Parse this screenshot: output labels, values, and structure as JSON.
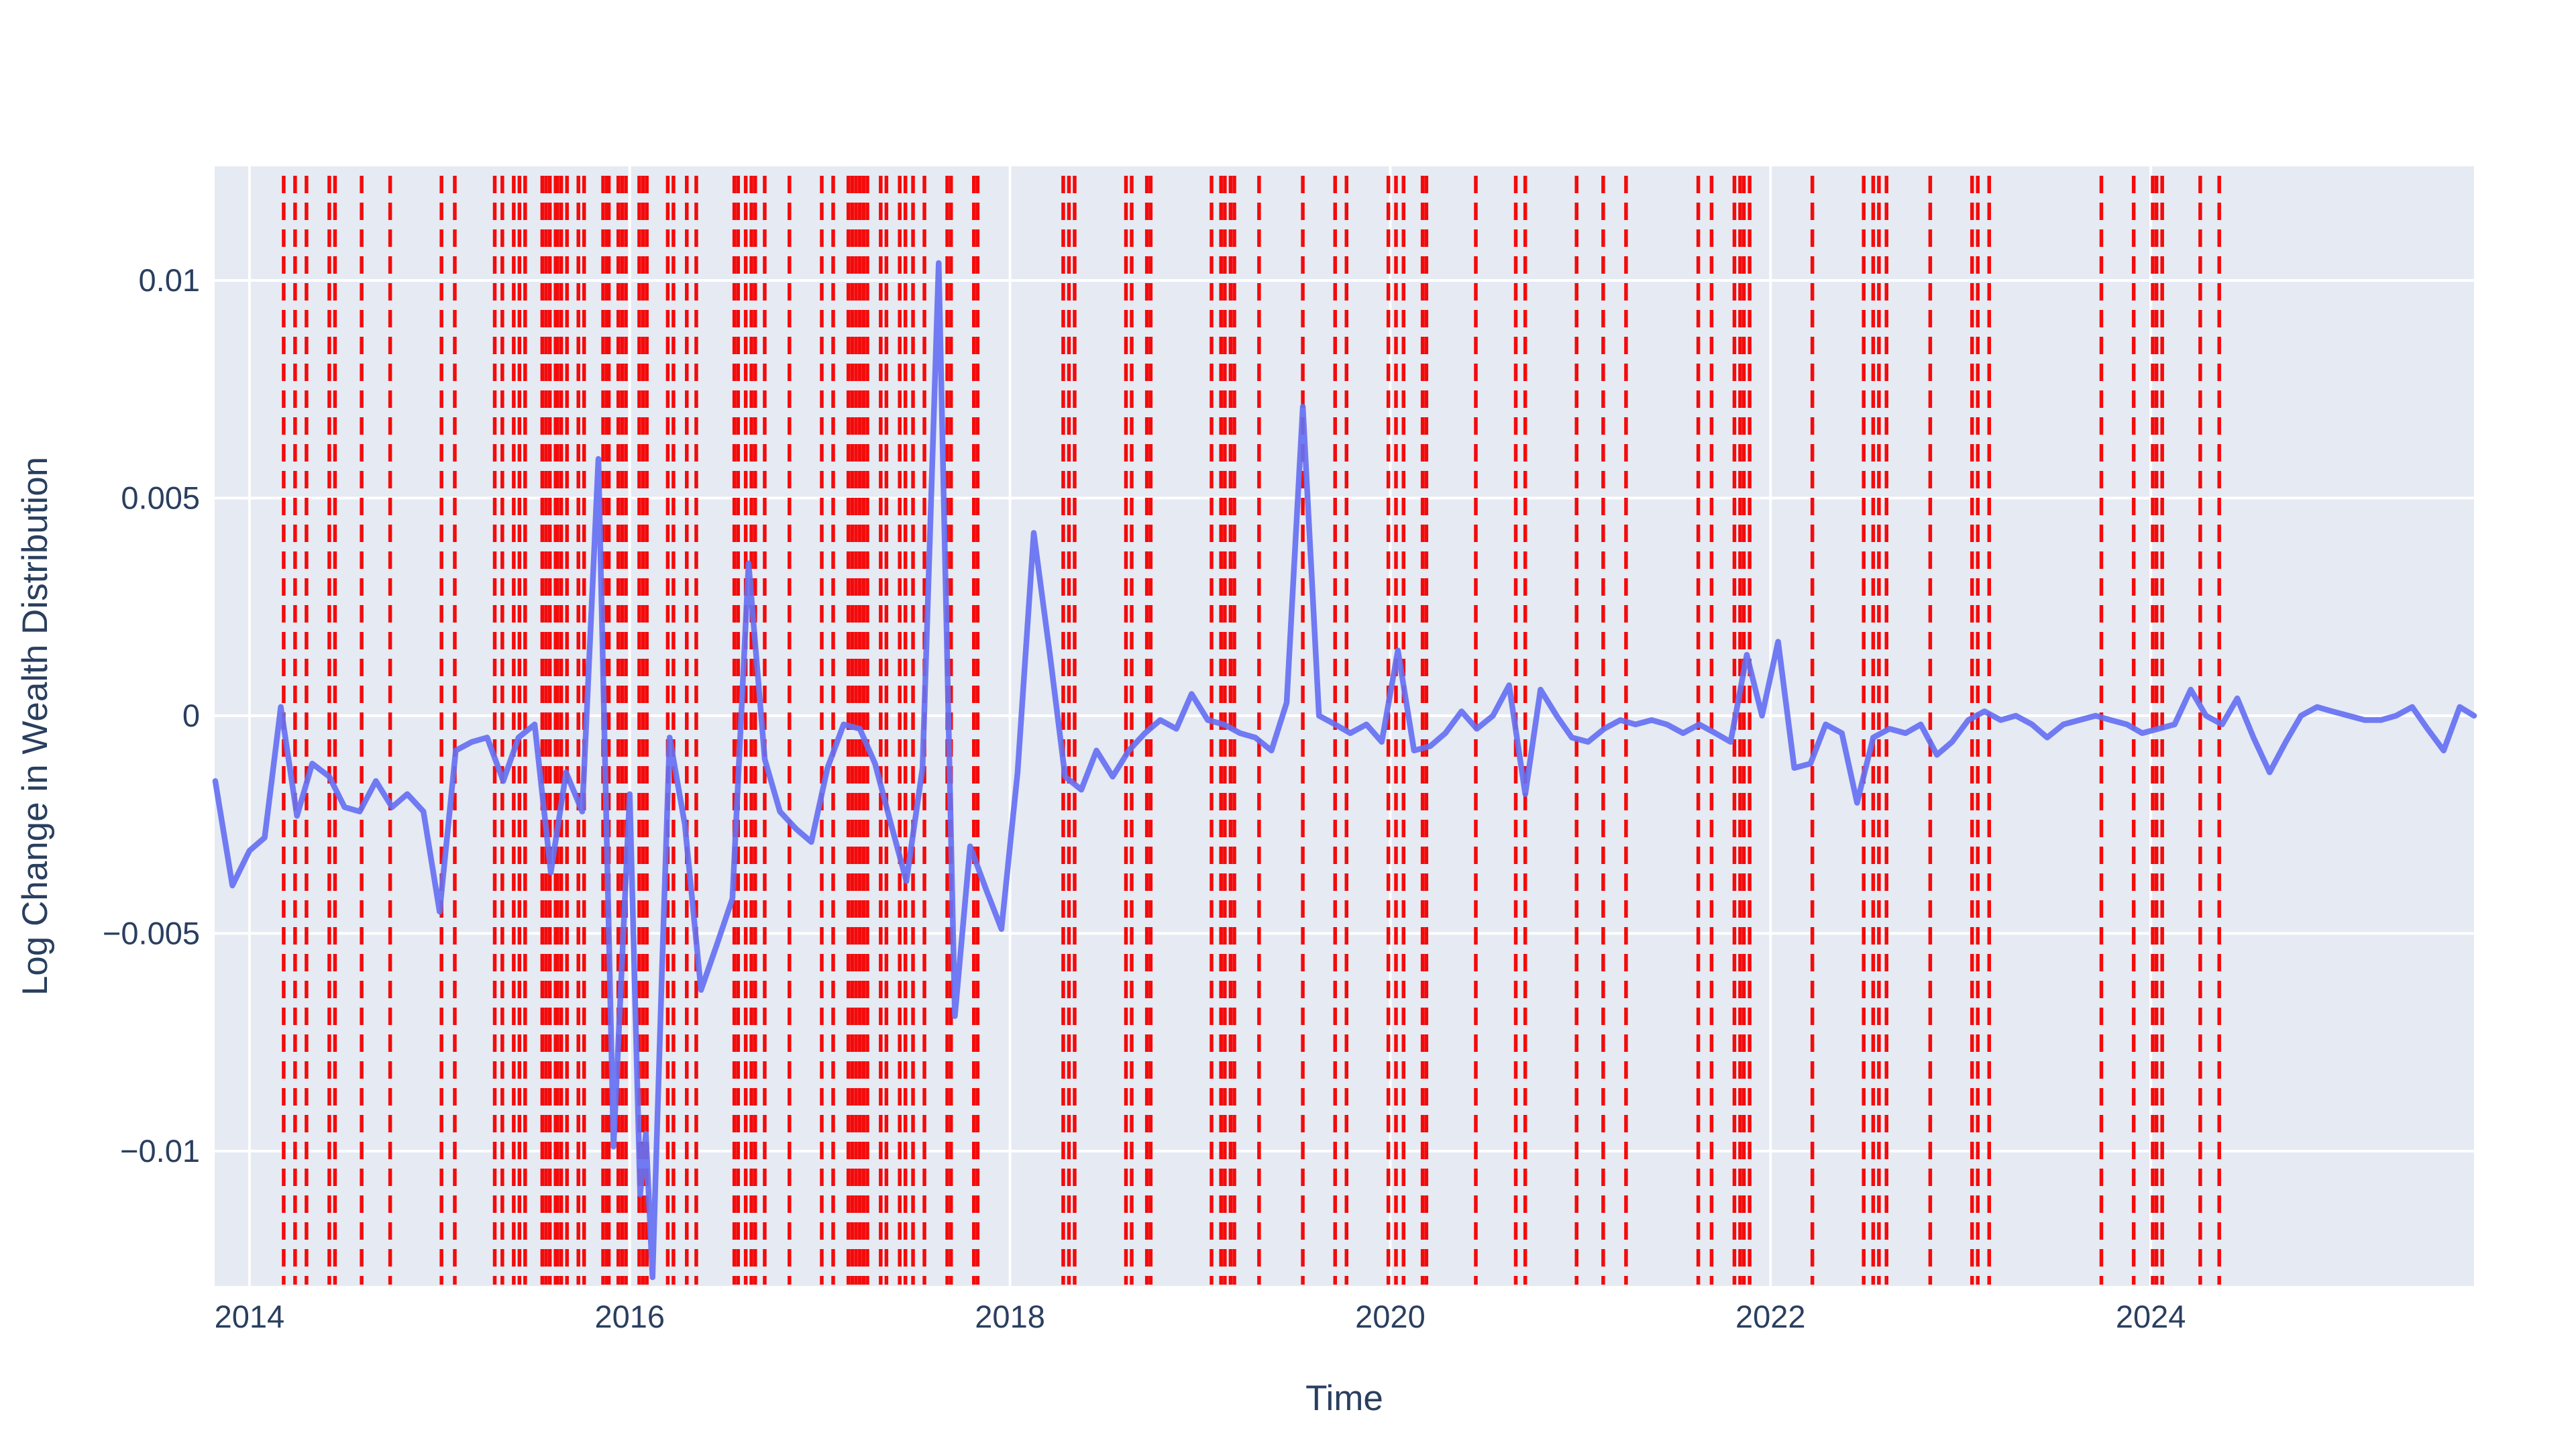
{
  "figure": {
    "kind": "plotly-style line chart with event rug lines",
    "background_color": "#ffffff",
    "plot_background_color": "#e5eaf3",
    "grid_color": "#ffffff",
    "text_color": "#2a3f5f",
    "line_color": "#6670f2",
    "event_line_color": "#f30b0b"
  },
  "chart_data": {
    "type": "line",
    "title": "",
    "xlabel": "Time",
    "ylabel": "Log Change in Wealth Distribution",
    "xlim": [
      2013.817,
      2025.7
    ],
    "ylim": [
      -0.0131,
      0.01262
    ],
    "grid": true,
    "legend": "none",
    "xticks": [
      {
        "v": 2014,
        "label": "2014"
      },
      {
        "v": 2016,
        "label": "2016"
      },
      {
        "v": 2018,
        "label": "2018"
      },
      {
        "v": 2020,
        "label": "2020"
      },
      {
        "v": 2022,
        "label": "2022"
      },
      {
        "v": 2024,
        "label": "2024"
      }
    ],
    "yticks": [
      {
        "v": 0.01,
        "label": "0.01"
      },
      {
        "v": 0.005,
        "label": "0.005"
      },
      {
        "v": 0,
        "label": "0"
      },
      {
        "v": -0.005,
        "label": "−0.005"
      },
      {
        "v": -0.01,
        "label": "−0.01"
      }
    ],
    "series": [
      {
        "name": "log-change-in-wealth-distribution",
        "x": [
          2013.82,
          2013.91,
          2014.0,
          2014.08,
          2014.165,
          2014.25,
          2014.33,
          2014.42,
          2014.5,
          2014.58,
          2014.665,
          2014.75,
          2014.83,
          2014.915,
          2015.0,
          2015.085,
          2015.17,
          2015.25,
          2015.335,
          2015.415,
          2015.5,
          2015.585,
          2015.665,
          2015.75,
          2015.835,
          2015.915,
          2016.0,
          2016.055,
          2016.085,
          2016.12,
          2016.17,
          2016.21,
          2016.29,
          2016.375,
          2016.455,
          2016.54,
          2016.625,
          2016.71,
          2016.79,
          2016.875,
          2016.955,
          2017.04,
          2017.125,
          2017.21,
          2017.29,
          2017.375,
          2017.455,
          2017.54,
          2017.625,
          2017.71,
          2017.79,
          2017.875,
          2017.955,
          2018.04,
          2018.125,
          2018.21,
          2018.29,
          2018.375,
          2018.455,
          2018.54,
          2018.625,
          2018.71,
          2018.79,
          2018.875,
          2018.955,
          2019.04,
          2019.125,
          2019.21,
          2019.29,
          2019.375,
          2019.455,
          2019.54,
          2019.625,
          2019.71,
          2019.79,
          2019.875,
          2019.955,
          2020.04,
          2020.125,
          2020.21,
          2020.29,
          2020.375,
          2020.455,
          2020.54,
          2020.625,
          2020.71,
          2020.79,
          2020.875,
          2020.955,
          2021.04,
          2021.125,
          2021.21,
          2021.29,
          2021.375,
          2021.455,
          2021.54,
          2021.625,
          2021.71,
          2021.79,
          2021.875,
          2021.955,
          2022.04,
          2022.125,
          2022.21,
          2022.29,
          2022.375,
          2022.455,
          2022.54,
          2022.625,
          2022.71,
          2022.79,
          2022.875,
          2022.955,
          2023.04,
          2023.125,
          2023.21,
          2023.29,
          2023.375,
          2023.455,
          2023.54,
          2023.625,
          2023.71,
          2023.79,
          2023.875,
          2023.955,
          2024.04,
          2024.125,
          2024.21,
          2024.29,
          2024.375,
          2024.455,
          2024.54,
          2024.625,
          2024.71,
          2024.79,
          2024.875,
          2024.955,
          2025.04,
          2025.125,
          2025.21,
          2025.29,
          2025.375,
          2025.455,
          2025.54,
          2025.625,
          2025.7
        ],
        "y": [
          -0.0015,
          -0.0039,
          -0.0031,
          -0.0028,
          0.0002,
          -0.0023,
          -0.0011,
          -0.0014,
          -0.0021,
          -0.0022,
          -0.0015,
          -0.0021,
          -0.0018,
          -0.0022,
          -0.0045,
          -0.0008,
          -0.0006,
          -0.0005,
          -0.0015,
          -0.0005,
          -0.0002,
          -0.0036,
          -0.0013,
          -0.0022,
          0.0059,
          -0.0099,
          -0.0018,
          -0.011,
          -0.0096,
          -0.0129,
          -0.0058,
          -0.0005,
          -0.0025,
          -0.0063,
          -0.0053,
          -0.0042,
          0.0035,
          -0.001,
          -0.0022,
          -0.0026,
          -0.0029,
          -0.0012,
          -0.0002,
          -0.0003,
          -0.0011,
          -0.0025,
          -0.0038,
          -0.0012,
          0.0104,
          -0.0069,
          -0.003,
          -0.004,
          -0.0049,
          -0.0013,
          0.0042,
          0.0014,
          -0.0014,
          -0.0017,
          -0.0008,
          -0.0014,
          -0.0008,
          -0.0004,
          -0.0001,
          -0.0003,
          0.0005,
          -0.0001,
          -0.0002,
          -0.0004,
          -0.0005,
          -0.0008,
          0.0003,
          0.0071,
          0.0,
          -0.0002,
          -0.0004,
          -0.0002,
          -0.0006,
          0.0015,
          -0.0008,
          -0.0007,
          -0.0004,
          0.0001,
          -0.0003,
          0.0,
          0.0007,
          -0.0018,
          0.0006,
          0.0,
          -0.0005,
          -0.0006,
          -0.0003,
          -0.0001,
          -0.0002,
          -0.0001,
          -0.0002,
          -0.0004,
          -0.0002,
          -0.0004,
          -0.0006,
          0.0014,
          0.0,
          0.0017,
          -0.0012,
          -0.0011,
          -0.0002,
          -0.0004,
          -0.002,
          -0.0005,
          -0.0003,
          -0.0004,
          -0.0002,
          -0.0009,
          -0.0006,
          -0.0001,
          0.0001,
          -0.0001,
          0.0,
          -0.0002,
          -0.0005,
          -0.0002,
          -0.0001,
          0.0,
          -0.0001,
          -0.0002,
          -0.0004,
          -0.0003,
          -0.0002,
          0.0006,
          0.0,
          -0.0002,
          0.0004,
          -0.0005,
          -0.0013,
          -0.0006,
          0.0,
          0.0002,
          0.0001,
          0.0,
          -0.0001,
          -0.0001,
          0.0,
          0.0002,
          -0.0003,
          -0.0008,
          0.0002,
          0.0
        ]
      }
    ],
    "event_vlines": {
      "style": "dashed",
      "x": [
        2014.18,
        2014.24,
        2014.3,
        2014.42,
        2014.45,
        2014.59,
        2014.74,
        2015.01,
        2015.08,
        2015.29,
        2015.33,
        2015.39,
        2015.42,
        2015.45,
        2015.54,
        2015.56,
        2015.58,
        2015.61,
        2015.62,
        2015.64,
        2015.67,
        2015.73,
        2015.76,
        2015.86,
        2015.88,
        2015.89,
        2015.94,
        2015.96,
        2015.98,
        2016.05,
        2016.07,
        2016.09,
        2016.2,
        2016.23,
        2016.3,
        2016.35,
        2016.55,
        2016.57,
        2016.61,
        2016.64,
        2016.66,
        2016.71,
        2016.84,
        2017.01,
        2017.07,
        2017.15,
        2017.17,
        2017.19,
        2017.21,
        2017.23,
        2017.25,
        2017.32,
        2017.35,
        2017.42,
        2017.45,
        2017.49,
        2017.55,
        2017.67,
        2017.69,
        2017.81,
        2017.83,
        2018.28,
        2018.31,
        2018.34,
        2018.61,
        2018.64,
        2018.72,
        2018.74,
        2019.06,
        2019.11,
        2019.13,
        2019.16,
        2019.18,
        2019.31,
        2019.54,
        2019.71,
        2019.77,
        2019.99,
        2020.03,
        2020.07,
        2020.17,
        2020.19,
        2020.45,
        2020.66,
        2020.71,
        2020.98,
        2021.12,
        2021.24,
        2021.62,
        2021.69,
        2021.81,
        2021.84,
        2021.86,
        2021.89,
        2022.22,
        2022.49,
        2022.54,
        2022.57,
        2022.61,
        2022.84,
        2023.06,
        2023.09,
        2023.15,
        2023.74,
        2023.91,
        2024.01,
        2024.03,
        2024.06,
        2024.26,
        2024.36
      ]
    }
  },
  "axes": {
    "x_title": "Time",
    "y_title": "Log Change in Wealth Distribution"
  }
}
